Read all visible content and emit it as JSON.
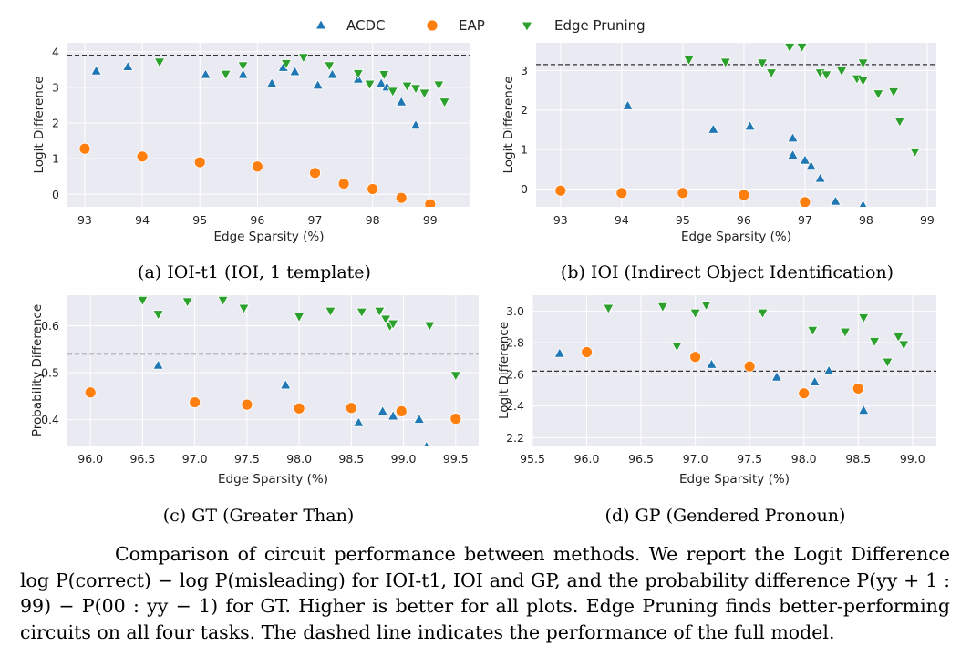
{
  "legend": [
    {
      "name": "ACDC",
      "marker": "triangle-up",
      "color": "#1f77b4"
    },
    {
      "name": "EAP",
      "marker": "circle",
      "color": "#ff7f0e"
    },
    {
      "name": "Edge Pruning",
      "marker": "triangle-down",
      "color": "#2ca02c"
    }
  ],
  "colors": {
    "acdc": "#1f77b4",
    "eap": "#ff7f0e",
    "edge_pruning": "#2ca02c",
    "plot_bg": "#eaeaf2",
    "grid": "#ffffff"
  },
  "chart_data": [
    {
      "type": "scatter",
      "caption": "(a) IOI-t1 (IOI, 1 template)",
      "xlabel": "Edge Sparsity (%)",
      "ylabel": "Logit Difference",
      "xlim": [
        92.7,
        99.7
      ],
      "ylim": [
        -0.35,
        4.25
      ],
      "xticks": [
        93,
        94,
        95,
        96,
        97,
        98,
        99
      ],
      "yticks": [
        0,
        1,
        2,
        3,
        4
      ],
      "xtick_labels": [
        "93",
        "94",
        "95",
        "96",
        "97",
        "98",
        "99"
      ],
      "ytick_labels": [
        "0",
        "1",
        "2",
        "3",
        "4"
      ],
      "reference_line": 3.9,
      "grid": true,
      "series": [
        {
          "name": "ACDC",
          "points": [
            [
              93.2,
              3.45
            ],
            [
              93.75,
              3.57
            ],
            [
              95.1,
              3.35
            ],
            [
              95.75,
              3.35
            ],
            [
              96.25,
              3.1
            ],
            [
              96.45,
              3.55
            ],
            [
              96.65,
              3.43
            ],
            [
              97.05,
              3.05
            ],
            [
              97.3,
              3.35
            ],
            [
              97.75,
              3.22
            ],
            [
              98.15,
              3.1
            ],
            [
              98.25,
              3.0
            ],
            [
              98.5,
              2.58
            ],
            [
              98.75,
              1.93
            ]
          ]
        },
        {
          "name": "EAP",
          "points": [
            [
              93.0,
              1.28
            ],
            [
              94.0,
              1.06
            ],
            [
              95.0,
              0.9
            ],
            [
              96.0,
              0.78
            ],
            [
              97.0,
              0.6
            ],
            [
              97.5,
              0.3
            ],
            [
              98.0,
              0.15
            ],
            [
              98.5,
              -0.1
            ],
            [
              99.0,
              -0.28
            ]
          ]
        },
        {
          "name": "Edge Pruning",
          "points": [
            [
              94.3,
              3.72
            ],
            [
              95.45,
              3.38
            ],
            [
              95.75,
              3.62
            ],
            [
              96.5,
              3.68
            ],
            [
              96.8,
              3.85
            ],
            [
              97.25,
              3.62
            ],
            [
              97.75,
              3.4
            ],
            [
              97.95,
              3.1
            ],
            [
              98.2,
              3.37
            ],
            [
              98.35,
              2.9
            ],
            [
              98.6,
              3.05
            ],
            [
              98.75,
              2.98
            ],
            [
              98.9,
              2.85
            ],
            [
              99.15,
              3.08
            ],
            [
              99.25,
              2.6
            ]
          ]
        }
      ]
    },
    {
      "type": "scatter",
      "caption": "(b) IOI (Indirect Object Identification)",
      "xlabel": "Edge Sparsity (%)",
      "ylabel": "Logit Difference",
      "xlim": [
        92.6,
        99.15
      ],
      "ylim": [
        -0.45,
        3.7
      ],
      "xticks": [
        93,
        94,
        95,
        96,
        97,
        98,
        99
      ],
      "yticks": [
        0,
        1,
        2,
        3
      ],
      "xtick_labels": [
        "93",
        "94",
        "95",
        "96",
        "97",
        "98",
        "99"
      ],
      "ytick_labels": [
        "0",
        "1",
        "2",
        "3"
      ],
      "reference_line": 3.15,
      "grid": true,
      "series": [
        {
          "name": "ACDC",
          "points": [
            [
              94.1,
              2.1
            ],
            [
              95.5,
              1.5
            ],
            [
              96.1,
              1.58
            ],
            [
              96.8,
              1.28
            ],
            [
              96.8,
              0.85
            ],
            [
              97.0,
              0.72
            ],
            [
              97.1,
              0.57
            ],
            [
              97.25,
              0.26
            ],
            [
              97.5,
              -0.32
            ],
            [
              97.95,
              -0.42
            ]
          ]
        },
        {
          "name": "EAP",
          "points": [
            [
              93.0,
              -0.04
            ],
            [
              94.0,
              -0.1
            ],
            [
              95.0,
              -0.1
            ],
            [
              96.0,
              -0.15
            ],
            [
              97.0,
              -0.33
            ]
          ]
        },
        {
          "name": "Edge Pruning",
          "points": [
            [
              95.1,
              3.28
            ],
            [
              95.7,
              3.22
            ],
            [
              96.3,
              3.2
            ],
            [
              96.45,
              2.95
            ],
            [
              96.75,
              3.6
            ],
            [
              96.95,
              3.6
            ],
            [
              97.25,
              2.95
            ],
            [
              97.35,
              2.9
            ],
            [
              97.6,
              3.0
            ],
            [
              97.85,
              2.8
            ],
            [
              97.95,
              2.75
            ],
            [
              97.95,
              3.2
            ],
            [
              98.2,
              2.42
            ],
            [
              98.45,
              2.47
            ],
            [
              98.55,
              1.72
            ],
            [
              98.8,
              0.95
            ]
          ]
        }
      ]
    },
    {
      "type": "scatter",
      "caption": "(c) GT (Greater Than)",
      "xlabel": "Edge Sparsity (%)",
      "ylabel": "Probability Difference",
      "xlim": [
        95.78,
        99.72
      ],
      "ylim": [
        0.345,
        0.665
      ],
      "xticks": [
        96.0,
        96.5,
        97.0,
        97.5,
        98.0,
        98.5,
        99.0,
        99.5
      ],
      "yticks": [
        0.4,
        0.5,
        0.6
      ],
      "xtick_labels": [
        "96.0",
        "96.5",
        "97.0",
        "97.5",
        "98.0",
        "98.5",
        "99.0",
        "99.5"
      ],
      "ytick_labels": [
        "0.4",
        "0.5",
        "0.6"
      ],
      "reference_line": 0.54,
      "grid": true,
      "series": [
        {
          "name": "ACDC",
          "points": [
            [
              96.65,
              0.515
            ],
            [
              97.87,
              0.473
            ],
            [
              98.57,
              0.393
            ],
            [
              98.8,
              0.417
            ],
            [
              98.9,
              0.407
            ],
            [
              99.15,
              0.4
            ],
            [
              99.22,
              0.342
            ]
          ]
        },
        {
          "name": "EAP",
          "points": [
            [
              96.0,
              0.458
            ],
            [
              97.0,
              0.437
            ],
            [
              97.5,
              0.432
            ],
            [
              98.0,
              0.424
            ],
            [
              98.5,
              0.425
            ],
            [
              98.98,
              0.418
            ],
            [
              99.5,
              0.402
            ]
          ]
        },
        {
          "name": "Edge Pruning",
          "points": [
            [
              96.5,
              0.655
            ],
            [
              96.65,
              0.625
            ],
            [
              96.93,
              0.652
            ],
            [
              97.27,
              0.655
            ],
            [
              97.47,
              0.638
            ],
            [
              98.0,
              0.62
            ],
            [
              98.3,
              0.632
            ],
            [
              98.6,
              0.63
            ],
            [
              98.77,
              0.632
            ],
            [
              98.83,
              0.615
            ],
            [
              98.87,
              0.6
            ],
            [
              98.9,
              0.605
            ],
            [
              99.25,
              0.601
            ],
            [
              99.5,
              0.495
            ]
          ]
        }
      ]
    },
    {
      "type": "scatter",
      "caption": "(d) GP (Gendered Pronoun)",
      "xlabel": "Edge Sparsity (%)",
      "ylabel": "Logit Difference",
      "xlim": [
        95.5,
        99.22
      ],
      "ylim": [
        2.15,
        3.1
      ],
      "xticks": [
        95.5,
        96.0,
        96.5,
        97.0,
        97.5,
        98.0,
        98.5,
        99.0
      ],
      "yticks": [
        2.2,
        2.4,
        2.6,
        2.8,
        3.0
      ],
      "xtick_labels": [
        "95.5",
        "96.0",
        "96.5",
        "97.0",
        "97.5",
        "98.0",
        "98.5",
        "99.0"
      ],
      "ytick_labels": [
        "2.2",
        "2.4",
        "2.6",
        "2.8",
        "3.0"
      ],
      "reference_line": 2.62,
      "grid": true,
      "series": [
        {
          "name": "ACDC",
          "points": [
            [
              95.75,
              2.73
            ],
            [
              97.15,
              2.66
            ],
            [
              97.75,
              2.58
            ],
            [
              98.1,
              2.55
            ],
            [
              98.23,
              2.62
            ],
            [
              98.55,
              2.37
            ]
          ]
        },
        {
          "name": "EAP",
          "points": [
            [
              96.0,
              2.74
            ],
            [
              97.0,
              2.71
            ],
            [
              97.5,
              2.65
            ],
            [
              98.0,
              2.48
            ],
            [
              98.5,
              2.51
            ]
          ]
        },
        {
          "name": "Edge Pruning",
          "points": [
            [
              96.2,
              3.02
            ],
            [
              96.7,
              3.03
            ],
            [
              96.83,
              2.78
            ],
            [
              97.0,
              2.99
            ],
            [
              97.1,
              3.04
            ],
            [
              97.62,
              2.99
            ],
            [
              98.08,
              2.88
            ],
            [
              98.38,
              2.87
            ],
            [
              98.55,
              2.96
            ],
            [
              98.65,
              2.81
            ],
            [
              98.77,
              2.68
            ],
            [
              98.87,
              2.84
            ],
            [
              98.92,
              2.79
            ]
          ]
        }
      ]
    }
  ],
  "caption_text": "Comparison of circuit performance between methods. We report the Logit Difference log P(correct) − log P(misleading) for IOI-t1, IOI and GP, and the probability difference P(yy + 1 : 99) − P(00 : yy − 1) for GT. Higher is better for all plots. Edge Pruning finds better-performing circuits on all four tasks. The dashed line indicates the performance of the full model."
}
